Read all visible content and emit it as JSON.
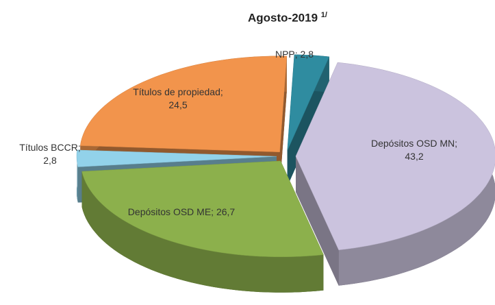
{
  "chart_data": {
    "type": "pie3d",
    "title": "Agosto-2019",
    "title_note": "1/",
    "categories": [
      "NPP",
      "Depósitos OSD MN",
      "Depósitos OSD ME",
      "Títulos BCCR",
      "Títulos de propiedad"
    ],
    "values": [
      2.8,
      43.2,
      26.7,
      2.8,
      24.5
    ],
    "value_labels": [
      "2,8",
      "43,2",
      "26,7",
      "2,8",
      "24,5"
    ],
    "label_separator": "; ",
    "colors": [
      "#2f8ca0",
      "#cbc3de",
      "#8cb04c",
      "#92d2ea",
      "#f2944c"
    ]
  }
}
